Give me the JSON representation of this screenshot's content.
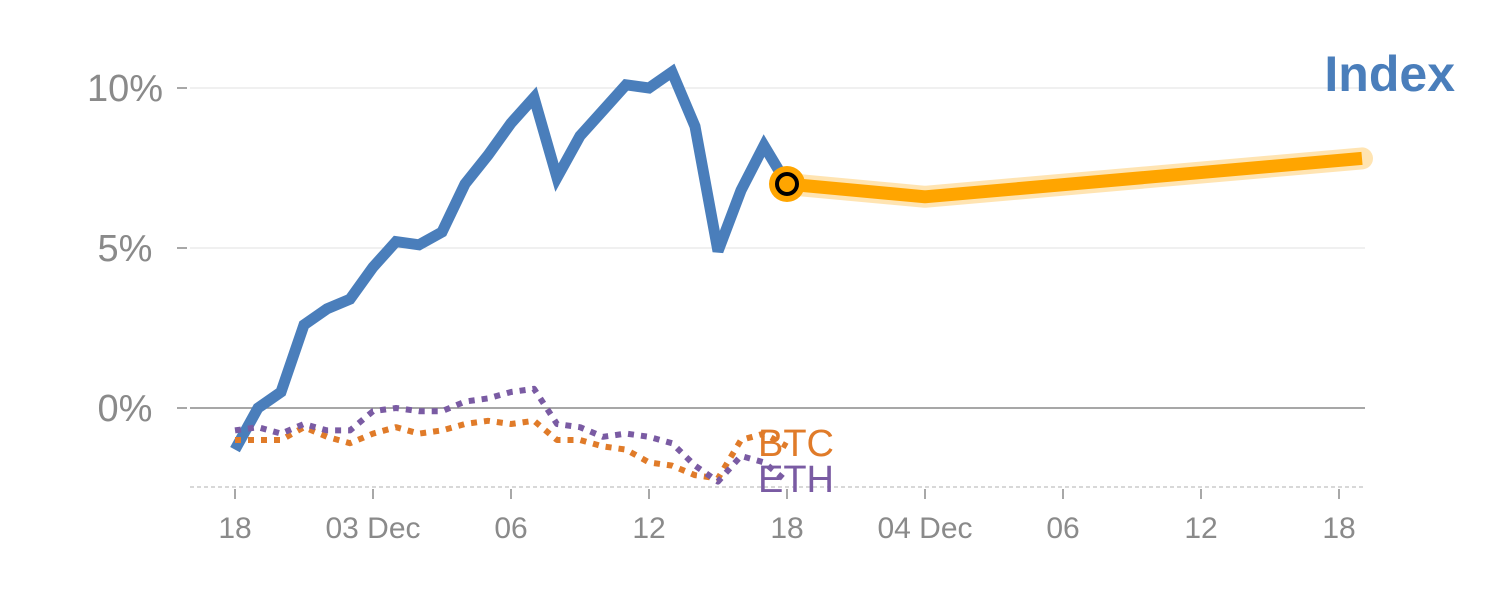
{
  "chart_data": {
    "type": "line",
    "title": "Index",
    "title_color": "#4a7ebb",
    "ylim": [
      -2.5,
      10.7
    ],
    "y_ticks": [
      {
        "value": 10,
        "label": "10%"
      },
      {
        "value": 5,
        "label": "5%"
      },
      {
        "value": 0,
        "label": "0%"
      }
    ],
    "x_ticks": [
      {
        "index": 1,
        "label": "18"
      },
      {
        "index": 7,
        "label": "03 Dec"
      },
      {
        "index": 13,
        "label": "06"
      },
      {
        "index": 19,
        "label": "12"
      },
      {
        "index": 25,
        "label": "18"
      },
      {
        "index": 31,
        "label": "04 Dec"
      },
      {
        "index": 37,
        "label": "06"
      },
      {
        "index": 43,
        "label": "12"
      },
      {
        "index": 49,
        "label": "18"
      }
    ],
    "series": [
      {
        "name": "Index",
        "color": "#4a7ebb",
        "style": "solid",
        "values": [
          -1.3,
          0.0,
          0.5,
          2.6,
          3.1,
          3.4,
          4.4,
          5.2,
          5.1,
          5.5,
          7.0,
          7.9,
          8.9,
          9.7,
          7.2,
          8.5,
          9.3,
          10.1,
          10.0,
          10.5,
          8.8,
          4.9,
          6.8,
          8.2,
          7.0
        ]
      },
      {
        "name": "BTC",
        "color": "#e07b29",
        "style": "dotted",
        "values": [
          -1.0,
          -1.0,
          -1.0,
          -0.6,
          -0.9,
          -1.1,
          -0.8,
          -0.6,
          -0.8,
          -0.7,
          -0.5,
          -0.4,
          -0.5,
          -0.4,
          -1.0,
          -1.0,
          -1.2,
          -1.3,
          -1.7,
          -1.8,
          -2.1,
          -2.2,
          -1.0,
          -0.8,
          -1.2
        ]
      },
      {
        "name": "ETH",
        "color": "#7a5ba3",
        "style": "dotted",
        "values": [
          -0.7,
          -0.6,
          -0.8,
          -0.5,
          -0.7,
          -0.7,
          -0.1,
          0.0,
          -0.1,
          -0.1,
          0.2,
          0.3,
          0.5,
          0.6,
          -0.5,
          -0.6,
          -0.9,
          -0.8,
          -0.9,
          -1.1,
          -1.8,
          -2.3,
          -1.5,
          -1.7,
          -2.3
        ]
      },
      {
        "name": "",
        "color": "#ffa500",
        "style": "forecast",
        "x_index": [
          25,
          31,
          50
        ],
        "values": [
          7.0,
          6.6,
          7.8
        ]
      }
    ],
    "marker": {
      "index": 25,
      "value": 7.0,
      "fill": "#ffa500",
      "stroke": "#000000"
    }
  }
}
